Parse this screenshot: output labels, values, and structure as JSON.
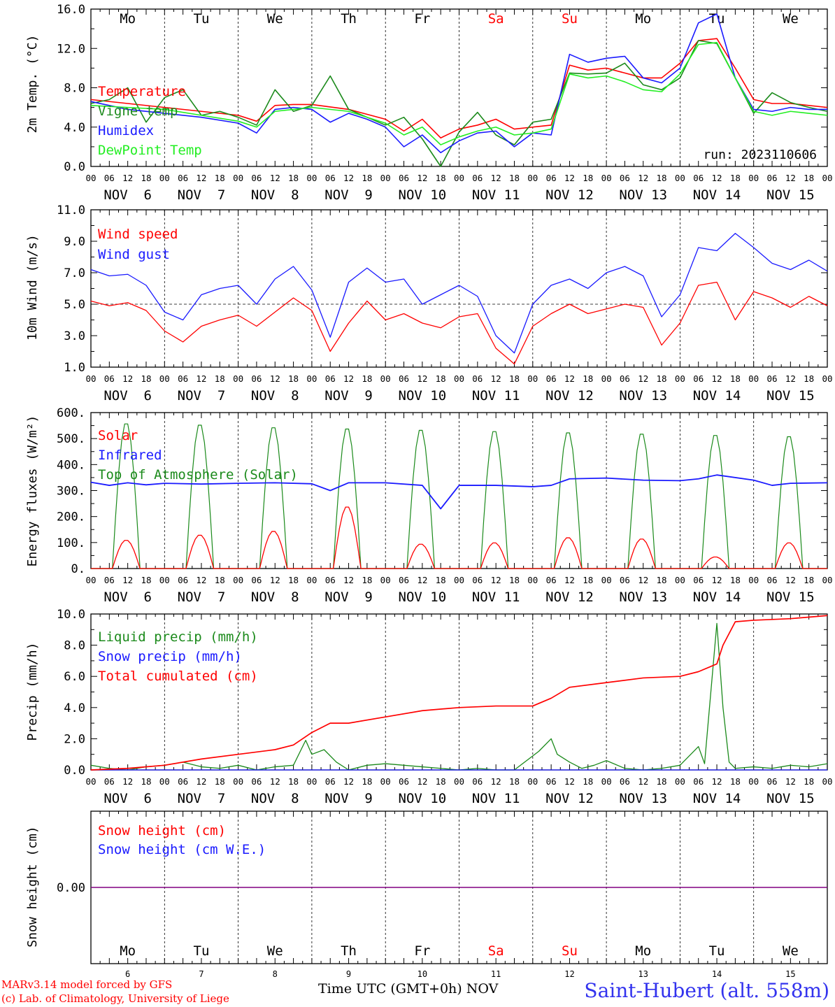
{
  "colors": {
    "red": "#ff0000",
    "blue": "#1a1aff",
    "green": "#1b8a1b",
    "lightgreen": "#22ee22",
    "purple": "#800080",
    "weekend": "#ff0000"
  },
  "days": [
    {
      "abbr": "Mo",
      "weekend": false,
      "date": "NOV  6",
      "num": "6"
    },
    {
      "abbr": "Tu",
      "weekend": false,
      "date": "NOV  7",
      "num": "7"
    },
    {
      "abbr": "We",
      "weekend": false,
      "date": "NOV  8",
      "num": "8"
    },
    {
      "abbr": "Th",
      "weekend": false,
      "date": "NOV  9",
      "num": "9"
    },
    {
      "abbr": "Fr",
      "weekend": false,
      "date": "NOV 10",
      "num": "10"
    },
    {
      "abbr": "Sa",
      "weekend": true,
      "date": "NOV 11",
      "num": "11"
    },
    {
      "abbr": "Su",
      "weekend": true,
      "date": "NOV 12",
      "num": "12"
    },
    {
      "abbr": "Mo",
      "weekend": false,
      "date": "NOV 13",
      "num": "13"
    },
    {
      "abbr": "Tu",
      "weekend": false,
      "date": "NOV 14",
      "num": "14"
    },
    {
      "abbr": "We",
      "weekend": false,
      "date": "NOV 15",
      "num": "15"
    }
  ],
  "hour_ticks": [
    "00",
    "06",
    "12",
    "18"
  ],
  "footer": {
    "model": "MARv3.14 model forced by GFS",
    "copyright": "(c) Lab. of Climatology, University of Liege",
    "xlabel": "Time UTC (GMT+0h)",
    "month": "NOV",
    "station": "Saint-Hubert (alt. 558m)"
  },
  "chart_data": [
    {
      "type": "line",
      "ylabel": "2m Temp. (°C)",
      "ylim": [
        0,
        16
      ],
      "yticks": [
        "0.0",
        "4.0",
        "8.0",
        "12.0",
        "16.0"
      ],
      "annotation": "run: 2023110606",
      "x_unit": "hours since NOV 6 00 UTC",
      "series": [
        {
          "name": "Temperature",
          "color": "red",
          "x": [
            0,
            12,
            24,
            36,
            48,
            54,
            60,
            66,
            72,
            84,
            96,
            102,
            108,
            114,
            120,
            126,
            132,
            138,
            144,
            150,
            156,
            162,
            168,
            174,
            180,
            186,
            192,
            198,
            204,
            210,
            216,
            222,
            228,
            234,
            240
          ],
          "values": [
            6.8,
            6.4,
            6.0,
            5.6,
            5.2,
            4.6,
            6.2,
            6.3,
            6.3,
            5.8,
            4.8,
            3.6,
            4.8,
            2.9,
            3.8,
            4.2,
            4.8,
            3.8,
            4.0,
            4.2,
            10.3,
            9.8,
            10.0,
            9.5,
            9.0,
            9.0,
            10.5,
            12.8,
            13.0,
            10.0,
            6.8,
            6.4,
            6.4,
            6.2,
            6.0
          ]
        },
        {
          "name": "Vigne temp",
          "color": "green",
          "x": [
            0,
            6,
            12,
            18,
            24,
            30,
            36,
            42,
            48,
            54,
            60,
            66,
            72,
            78,
            84,
            90,
            96,
            102,
            108,
            114,
            120,
            126,
            132,
            138,
            144,
            150,
            156,
            162,
            168,
            174,
            180,
            186,
            192,
            198,
            204,
            210,
            216,
            222,
            228,
            234,
            240
          ],
          "values": [
            6.4,
            6.8,
            8.0,
            4.5,
            7.0,
            7.8,
            5.2,
            5.6,
            5.0,
            4.2,
            7.8,
            5.6,
            6.2,
            9.2,
            5.8,
            5.0,
            4.2,
            5.0,
            2.8,
            0.0,
            3.5,
            5.5,
            3.2,
            2.2,
            4.5,
            4.8,
            9.5,
            9.4,
            9.5,
            10.5,
            8.3,
            7.8,
            9.0,
            12.8,
            12.5,
            9.0,
            5.4,
            7.5,
            6.5,
            6.0,
            5.6
          ]
        },
        {
          "name": "Humidex",
          "color": "blue",
          "x": [
            0,
            12,
            24,
            36,
            48,
            54,
            60,
            66,
            72,
            78,
            84,
            90,
            96,
            102,
            108,
            114,
            120,
            126,
            132,
            138,
            144,
            150,
            156,
            162,
            168,
            174,
            180,
            186,
            192,
            198,
            204,
            210,
            216,
            222,
            228,
            234,
            240
          ],
          "values": [
            6.6,
            5.8,
            5.4,
            5.0,
            4.4,
            3.4,
            5.8,
            6.0,
            5.8,
            4.5,
            5.4,
            4.8,
            4.0,
            2.0,
            3.2,
            1.4,
            2.6,
            3.4,
            3.6,
            2.0,
            3.4,
            3.2,
            11.4,
            10.6,
            11.0,
            11.2,
            9.0,
            8.5,
            10.0,
            14.6,
            15.5,
            9.0,
            5.8,
            5.6,
            6.0,
            5.8,
            5.8
          ]
        },
        {
          "name": "DewPoint Temp",
          "color": "lightgreen",
          "x": [
            0,
            12,
            24,
            36,
            48,
            54,
            60,
            66,
            72,
            84,
            96,
            102,
            108,
            114,
            120,
            126,
            132,
            138,
            144,
            150,
            156,
            162,
            168,
            174,
            180,
            186,
            192,
            198,
            204,
            210,
            216,
            222,
            228,
            234,
            240
          ],
          "values": [
            6.2,
            6.0,
            5.8,
            5.2,
            4.6,
            4.0,
            5.6,
            5.8,
            6.0,
            5.6,
            4.4,
            3.2,
            4.0,
            2.2,
            3.0,
            3.6,
            4.0,
            3.2,
            3.4,
            3.8,
            9.4,
            9.0,
            9.2,
            8.6,
            7.8,
            7.6,
            9.4,
            12.4,
            12.6,
            9.0,
            5.6,
            5.2,
            5.6,
            5.4,
            5.2
          ]
        }
      ]
    },
    {
      "type": "line",
      "ylabel": "10m Wind (m/s)",
      "ylim": [
        1,
        11
      ],
      "yticks": [
        "1.0",
        "3.0",
        "5.0",
        "7.0",
        "9.0",
        "11.0"
      ],
      "reference_line": 5.0,
      "x_unit": "hours since NOV 6 00 UTC",
      "series": [
        {
          "name": "Wind speed",
          "color": "red",
          "x": [
            0,
            6,
            12,
            18,
            24,
            30,
            36,
            42,
            48,
            54,
            60,
            66,
            72,
            78,
            84,
            90,
            96,
            102,
            108,
            114,
            120,
            126,
            132,
            138,
            144,
            150,
            156,
            162,
            168,
            174,
            180,
            186,
            192,
            198,
            204,
            210,
            216,
            222,
            228,
            234,
            240
          ],
          "values": [
            5.2,
            4.9,
            5.1,
            4.6,
            3.3,
            2.6,
            3.6,
            4.0,
            4.3,
            3.6,
            4.5,
            5.4,
            4.6,
            2.0,
            3.8,
            5.2,
            4.0,
            4.4,
            3.8,
            3.5,
            4.2,
            4.4,
            2.2,
            1.2,
            3.6,
            4.4,
            5.0,
            4.4,
            4.7,
            5.0,
            4.8,
            2.4,
            3.8,
            6.2,
            6.4,
            4.0,
            5.8,
            5.4,
            4.8,
            5.5,
            4.9
          ]
        },
        {
          "name": "Wind gust",
          "color": "blue",
          "x": [
            0,
            6,
            12,
            18,
            24,
            30,
            36,
            42,
            48,
            54,
            60,
            66,
            72,
            78,
            84,
            90,
            96,
            102,
            108,
            114,
            120,
            126,
            132,
            138,
            144,
            150,
            156,
            162,
            168,
            174,
            180,
            186,
            192,
            198,
            204,
            210,
            216,
            222,
            228,
            234,
            240
          ],
          "values": [
            7.2,
            6.8,
            6.9,
            6.2,
            4.5,
            4.0,
            5.6,
            6.0,
            6.2,
            5.0,
            6.6,
            7.4,
            5.9,
            2.9,
            6.4,
            7.3,
            6.4,
            6.6,
            5.0,
            5.6,
            6.2,
            5.5,
            3.0,
            1.9,
            5.0,
            6.2,
            6.6,
            6.0,
            7.0,
            7.4,
            6.8,
            4.2,
            5.6,
            8.6,
            8.4,
            9.5,
            8.6,
            7.6,
            7.2,
            7.8,
            7.1
          ]
        }
      ]
    },
    {
      "type": "line",
      "ylabel": "Energy fluxes (W/m²)",
      "ylim": [
        0,
        600
      ],
      "yticks": [
        "0.",
        "100.",
        "200.",
        "300.",
        "400.",
        "500.",
        "600."
      ],
      "x_unit": "hours since NOV 6 00 UTC",
      "diurnal_hours": [
        7,
        16
      ],
      "series": [
        {
          "name": "Solar",
          "color": "red",
          "daily_peak": [
            110,
            130,
            145,
            240,
            95,
            100,
            120,
            115,
            45,
            100
          ]
        },
        {
          "name": "Infrared",
          "color": "blue",
          "x": [
            0,
            6,
            12,
            18,
            24,
            36,
            48,
            60,
            72,
            78,
            84,
            96,
            108,
            114,
            120,
            132,
            144,
            150,
            156,
            168,
            180,
            192,
            198,
            204,
            216,
            222,
            228,
            240
          ],
          "values": [
            332,
            320,
            330,
            322,
            328,
            325,
            328,
            330,
            326,
            300,
            330,
            330,
            320,
            230,
            320,
            320,
            315,
            320,
            345,
            348,
            340,
            338,
            345,
            360,
            340,
            320,
            328,
            330
          ]
        },
        {
          "name": "Top of Atmosphere (Solar)",
          "color": "green",
          "daily_peak": [
            565,
            560,
            550,
            545,
            540,
            535,
            530,
            525,
            520,
            515
          ]
        }
      ]
    },
    {
      "type": "line",
      "ylabel": "Precip (mm/h)",
      "ylim": [
        0,
        10
      ],
      "yticks": [
        "0.0",
        "2.0",
        "4.0",
        "6.0",
        "8.0",
        "10.0"
      ],
      "x_unit": "hours since NOV 6 00 UTC",
      "series": [
        {
          "name": "Liquid precip (mm/h)",
          "color": "green",
          "x": [
            0,
            6,
            12,
            18,
            24,
            30,
            36,
            42,
            48,
            54,
            60,
            66,
            70,
            72,
            76,
            80,
            84,
            90,
            96,
            102,
            108,
            114,
            120,
            126,
            132,
            138,
            146,
            150,
            152,
            156,
            160,
            164,
            168,
            174,
            180,
            186,
            192,
            198,
            200,
            204,
            206,
            208,
            210,
            216,
            222,
            228,
            234,
            240
          ],
          "values": [
            0.3,
            0.1,
            0.0,
            0.2,
            0.3,
            0.5,
            0.2,
            0.1,
            0.3,
            0.0,
            0.2,
            0.3,
            1.9,
            1.0,
            1.3,
            0.5,
            0.0,
            0.3,
            0.4,
            0.3,
            0.2,
            0.1,
            0.0,
            0.1,
            0.0,
            0.0,
            1.2,
            2.0,
            1.0,
            0.5,
            0.1,
            0.3,
            0.6,
            0.1,
            0.0,
            0.1,
            0.3,
            1.5,
            0.4,
            9.4,
            4.0,
            0.5,
            0.1,
            0.2,
            0.1,
            0.3,
            0.2,
            0.4
          ]
        },
        {
          "name": "Snow precip (mm/h)",
          "color": "blue",
          "x": [
            0,
            240
          ],
          "values": [
            0.0,
            0.0
          ]
        },
        {
          "name": "Total cumulated (cm)",
          "color": "red",
          "x": [
            0,
            12,
            24,
            36,
            48,
            60,
            66,
            72,
            78,
            84,
            96,
            108,
            120,
            132,
            144,
            150,
            156,
            168,
            180,
            192,
            198,
            204,
            206,
            210,
            216,
            228,
            240
          ],
          "values": [
            0.0,
            0.1,
            0.3,
            0.7,
            1.0,
            1.3,
            1.6,
            2.4,
            3.0,
            3.0,
            3.4,
            3.8,
            4.0,
            4.1,
            4.1,
            4.6,
            5.3,
            5.6,
            5.9,
            6.0,
            6.3,
            6.8,
            8.0,
            9.5,
            9.6,
            9.7,
            9.9
          ]
        }
      ]
    },
    {
      "type": "line",
      "ylabel": "Snow height (cm)",
      "yticks": [
        "0.00"
      ],
      "x_unit": "hours since NOV 6 00 UTC",
      "series": [
        {
          "name": "Snow height (cm)",
          "color": "red",
          "x": [
            0,
            240
          ],
          "values": [
            0.0,
            0.0
          ]
        },
        {
          "name": "Snow height (cm W.E.)",
          "color": "blue",
          "x": [
            0,
            240
          ],
          "values": [
            0.0,
            0.0
          ]
        }
      ]
    }
  ]
}
